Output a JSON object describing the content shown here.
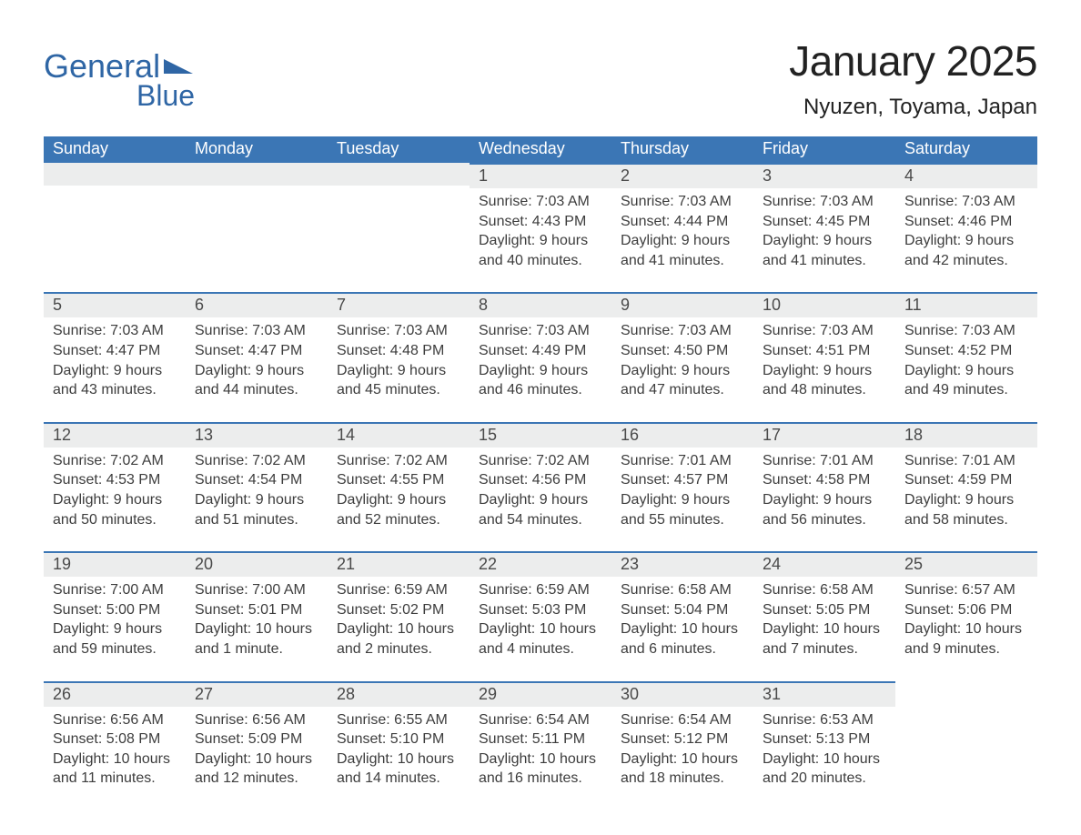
{
  "type": "calendar-month-table",
  "colors": {
    "header_bg": "#3b76b5",
    "header_text": "#ffffff",
    "date_strip_bg": "#eceded",
    "date_strip_border": "#3b76b5",
    "body_text": "#3d3d3d",
    "logo_color": "#2f66a5",
    "title_color": "#222222",
    "background": "#ffffff"
  },
  "fonts": {
    "month_title_size_pt": 34,
    "location_size_pt": 18,
    "header_size_pt": 14,
    "date_size_pt": 14,
    "info_size_pt": 12
  },
  "logo": {
    "line1": "General",
    "line2": "Blue"
  },
  "title": "January 2025",
  "location": "Nyuzen, Toyama, Japan",
  "day_headers": [
    "Sunday",
    "Monday",
    "Tuesday",
    "Wednesday",
    "Thursday",
    "Friday",
    "Saturday"
  ],
  "labels": {
    "sunrise": "Sunrise:",
    "sunset": "Sunset:",
    "daylight": "Daylight:"
  },
  "weeks": [
    [
      {
        "empty": true
      },
      {
        "empty": true
      },
      {
        "empty": true
      },
      {
        "date": "1",
        "sunrise": "7:03 AM",
        "sunset": "4:43 PM",
        "daylight_l1": "9 hours",
        "daylight_l2": "and 40 minutes."
      },
      {
        "date": "2",
        "sunrise": "7:03 AM",
        "sunset": "4:44 PM",
        "daylight_l1": "9 hours",
        "daylight_l2": "and 41 minutes."
      },
      {
        "date": "3",
        "sunrise": "7:03 AM",
        "sunset": "4:45 PM",
        "daylight_l1": "9 hours",
        "daylight_l2": "and 41 minutes."
      },
      {
        "date": "4",
        "sunrise": "7:03 AM",
        "sunset": "4:46 PM",
        "daylight_l1": "9 hours",
        "daylight_l2": "and 42 minutes."
      }
    ],
    [
      {
        "date": "5",
        "sunrise": "7:03 AM",
        "sunset": "4:47 PM",
        "daylight_l1": "9 hours",
        "daylight_l2": "and 43 minutes."
      },
      {
        "date": "6",
        "sunrise": "7:03 AM",
        "sunset": "4:47 PM",
        "daylight_l1": "9 hours",
        "daylight_l2": "and 44 minutes."
      },
      {
        "date": "7",
        "sunrise": "7:03 AM",
        "sunset": "4:48 PM",
        "daylight_l1": "9 hours",
        "daylight_l2": "and 45 minutes."
      },
      {
        "date": "8",
        "sunrise": "7:03 AM",
        "sunset": "4:49 PM",
        "daylight_l1": "9 hours",
        "daylight_l2": "and 46 minutes."
      },
      {
        "date": "9",
        "sunrise": "7:03 AM",
        "sunset": "4:50 PM",
        "daylight_l1": "9 hours",
        "daylight_l2": "and 47 minutes."
      },
      {
        "date": "10",
        "sunrise": "7:03 AM",
        "sunset": "4:51 PM",
        "daylight_l1": "9 hours",
        "daylight_l2": "and 48 minutes."
      },
      {
        "date": "11",
        "sunrise": "7:03 AM",
        "sunset": "4:52 PM",
        "daylight_l1": "9 hours",
        "daylight_l2": "and 49 minutes."
      }
    ],
    [
      {
        "date": "12",
        "sunrise": "7:02 AM",
        "sunset": "4:53 PM",
        "daylight_l1": "9 hours",
        "daylight_l2": "and 50 minutes."
      },
      {
        "date": "13",
        "sunrise": "7:02 AM",
        "sunset": "4:54 PM",
        "daylight_l1": "9 hours",
        "daylight_l2": "and 51 minutes."
      },
      {
        "date": "14",
        "sunrise": "7:02 AM",
        "sunset": "4:55 PM",
        "daylight_l1": "9 hours",
        "daylight_l2": "and 52 minutes."
      },
      {
        "date": "15",
        "sunrise": "7:02 AM",
        "sunset": "4:56 PM",
        "daylight_l1": "9 hours",
        "daylight_l2": "and 54 minutes."
      },
      {
        "date": "16",
        "sunrise": "7:01 AM",
        "sunset": "4:57 PM",
        "daylight_l1": "9 hours",
        "daylight_l2": "and 55 minutes."
      },
      {
        "date": "17",
        "sunrise": "7:01 AM",
        "sunset": "4:58 PM",
        "daylight_l1": "9 hours",
        "daylight_l2": "and 56 minutes."
      },
      {
        "date": "18",
        "sunrise": "7:01 AM",
        "sunset": "4:59 PM",
        "daylight_l1": "9 hours",
        "daylight_l2": "and 58 minutes."
      }
    ],
    [
      {
        "date": "19",
        "sunrise": "7:00 AM",
        "sunset": "5:00 PM",
        "daylight_l1": "9 hours",
        "daylight_l2": "and 59 minutes."
      },
      {
        "date": "20",
        "sunrise": "7:00 AM",
        "sunset": "5:01 PM",
        "daylight_l1": "10 hours",
        "daylight_l2": "and 1 minute."
      },
      {
        "date": "21",
        "sunrise": "6:59 AM",
        "sunset": "5:02 PM",
        "daylight_l1": "10 hours",
        "daylight_l2": "and 2 minutes."
      },
      {
        "date": "22",
        "sunrise": "6:59 AM",
        "sunset": "5:03 PM",
        "daylight_l1": "10 hours",
        "daylight_l2": "and 4 minutes."
      },
      {
        "date": "23",
        "sunrise": "6:58 AM",
        "sunset": "5:04 PM",
        "daylight_l1": "10 hours",
        "daylight_l2": "and 6 minutes."
      },
      {
        "date": "24",
        "sunrise": "6:58 AM",
        "sunset": "5:05 PM",
        "daylight_l1": "10 hours",
        "daylight_l2": "and 7 minutes."
      },
      {
        "date": "25",
        "sunrise": "6:57 AM",
        "sunset": "5:06 PM",
        "daylight_l1": "10 hours",
        "daylight_l2": "and 9 minutes."
      }
    ],
    [
      {
        "date": "26",
        "sunrise": "6:56 AM",
        "sunset": "5:08 PM",
        "daylight_l1": "10 hours",
        "daylight_l2": "and 11 minutes."
      },
      {
        "date": "27",
        "sunrise": "6:56 AM",
        "sunset": "5:09 PM",
        "daylight_l1": "10 hours",
        "daylight_l2": "and 12 minutes."
      },
      {
        "date": "28",
        "sunrise": "6:55 AM",
        "sunset": "5:10 PM",
        "daylight_l1": "10 hours",
        "daylight_l2": "and 14 minutes."
      },
      {
        "date": "29",
        "sunrise": "6:54 AM",
        "sunset": "5:11 PM",
        "daylight_l1": "10 hours",
        "daylight_l2": "and 16 minutes."
      },
      {
        "date": "30",
        "sunrise": "6:54 AM",
        "sunset": "5:12 PM",
        "daylight_l1": "10 hours",
        "daylight_l2": "and 18 minutes."
      },
      {
        "date": "31",
        "sunrise": "6:53 AM",
        "sunset": "5:13 PM",
        "daylight_l1": "10 hours",
        "daylight_l2": "and 20 minutes."
      },
      {
        "empty": true,
        "trailing": true
      }
    ]
  ]
}
